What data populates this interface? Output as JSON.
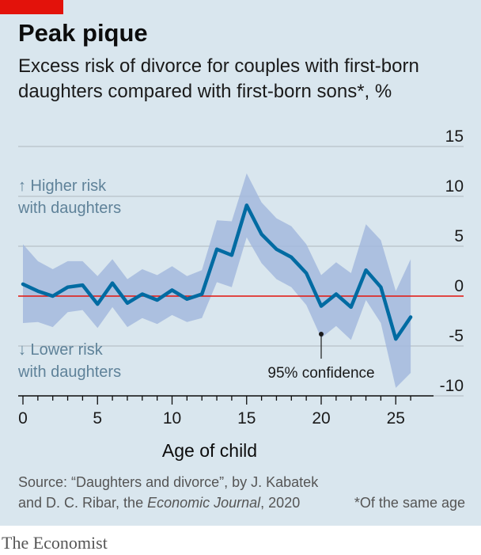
{
  "header": {
    "title": "Peak pique",
    "subtitle": "Excess risk of divorce for couples with first-born daughters compared with first-born sons*, %"
  },
  "annotations": {
    "higher_line1": "↑ Higher risk",
    "higher_line2": "with daughters",
    "lower_line1": "↓ Lower risk",
    "lower_line2": "with daughters",
    "confidence": "95% confidence"
  },
  "footer": {
    "source_line1": "Source: “Daughters and divorce”, by J. Kabatek",
    "source_line2_start": "and D. C. Ribar, the ",
    "source_journal": "Economic Journal",
    "source_line2_end": ", 2020",
    "footnote": "*Of the same age",
    "brand": "The Economist"
  },
  "colors": {
    "background": "#d9e6ee",
    "line": "#006ba2",
    "band": "#a3b8dd",
    "zero_line": "#e3120b",
    "grid": "#aeb8bf",
    "annotation_text": "#5f8299"
  },
  "chart_data": {
    "type": "line",
    "xlabel": "Age of child",
    "ylabel": "",
    "xlim": [
      0,
      26
    ],
    "ylim": [
      -10,
      15
    ],
    "x_ticks": [
      0,
      5,
      10,
      15,
      20,
      25
    ],
    "y_ticks": [
      15,
      10,
      5,
      0,
      -5,
      -10
    ],
    "y_tick_labels": [
      "15",
      "10",
      "5",
      "0",
      "-5",
      "-10"
    ],
    "grid": true,
    "reference_line": 0,
    "series": [
      {
        "x": [
          0,
          1,
          2,
          3,
          4,
          5,
          6,
          7,
          8,
          9,
          10,
          11,
          12,
          13,
          14,
          15,
          16,
          17,
          18,
          19,
          20,
          21,
          22,
          23,
          24,
          25,
          26
        ],
        "values": [
          1.2,
          0.5,
          0.0,
          0.9,
          1.1,
          -0.8,
          1.3,
          -0.7,
          0.2,
          -0.4,
          0.6,
          -0.3,
          0.2,
          4.7,
          4.1,
          9.1,
          6.2,
          4.7,
          3.9,
          2.3,
          -1.0,
          0.2,
          -1.1,
          2.6,
          0.9,
          -4.3,
          -2.1
        ],
        "lower": [
          -2.7,
          -2.6,
          -3.1,
          -1.6,
          -1.4,
          -3.2,
          -1.1,
          -3.1,
          -2.2,
          -2.8,
          -1.9,
          -2.6,
          -2.2,
          1.4,
          0.9,
          5.9,
          3.3,
          1.7,
          0.9,
          -0.9,
          -4.2,
          -3.0,
          -4.4,
          -0.4,
          -2.7,
          -9.2,
          -7.7
        ],
        "upper": [
          5.2,
          3.5,
          2.7,
          3.5,
          3.5,
          2.0,
          3.7,
          1.7,
          2.7,
          2.1,
          3.0,
          2.0,
          2.6,
          7.6,
          7.5,
          12.3,
          9.4,
          7.8,
          7.0,
          5.2,
          2.1,
          3.4,
          2.3,
          7.2,
          5.6,
          0.5,
          3.7
        ]
      }
    ]
  }
}
